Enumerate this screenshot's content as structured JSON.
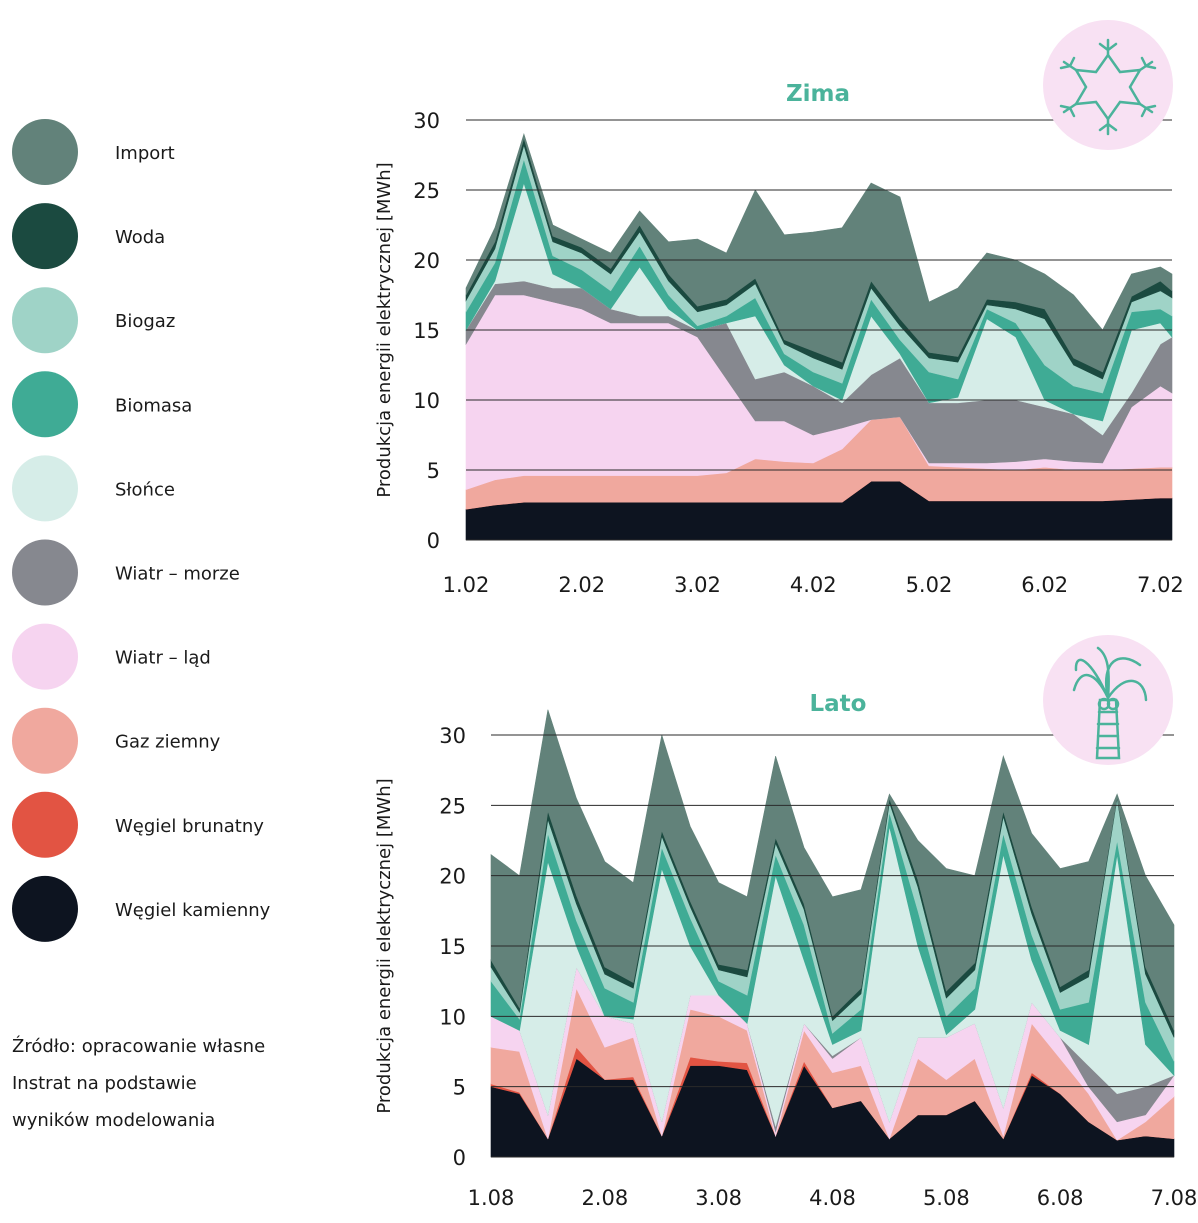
{
  "legend_source": [
    "Źródło: opracowanie własne",
    "Instrat na podstawie",
    "wyników modelowania"
  ],
  "chart_data": [
    {
      "type": "stacked_area",
      "title": "Zima",
      "ylabel": "Produkcja energii elektrycznej [MWh]",
      "x": [
        0,
        0.25,
        0.5,
        0.75,
        1,
        1.25,
        1.5,
        1.75,
        2,
        2.25,
        2.5,
        2.75,
        3,
        3.25,
        3.5,
        3.75,
        4,
        4.25,
        4.5,
        4.75,
        5,
        5.25,
        5.5,
        5.75,
        6,
        6.1
      ],
      "xlim": [
        0,
        6.1
      ],
      "xticks": [
        {
          "value": 0,
          "label": "1.02"
        },
        {
          "value": 1,
          "label": "2.02"
        },
        {
          "value": 2,
          "label": "3.02"
        },
        {
          "value": 3,
          "label": "4.02"
        },
        {
          "value": 4,
          "label": "5.02"
        },
        {
          "value": 5,
          "label": "6.02"
        },
        {
          "value": 6,
          "label": "7.02"
        }
      ],
      "ylim": [
        0,
        30
      ],
      "yticks": [
        0,
        5,
        10,
        15,
        20,
        25,
        30
      ],
      "grid": true,
      "series": [
        {
          "name": "Import",
          "color": "#62827a",
          "values": [
            0.5,
            1.0,
            0.3,
            0.8,
            0.6,
            1.1,
            1.0,
            2.3,
            4.8,
            3.3,
            6.3,
            7.5,
            8.5,
            9.6,
            7.0,
            8.7,
            3.6,
            4.9,
            3.3,
            3.0,
            2.5,
            4.5,
            3.0,
            1.6,
            1.0,
            1.2
          ]
        },
        {
          "name": "Woda",
          "color": "#1b4a40",
          "values": [
            0.4,
            0.5,
            0.5,
            0.4,
            0.4,
            0.4,
            0.5,
            0.5,
            0.4,
            0.4,
            0.4,
            0.3,
            0.5,
            0.5,
            0.5,
            0.5,
            0.4,
            0.4,
            0.4,
            0.5,
            0.7,
            0.5,
            0.5,
            0.4,
            0.7,
            0.5
          ]
        },
        {
          "name": "Biogaz",
          "color": "#9fd3c7",
          "values": [
            0.8,
            1.0,
            1.0,
            1.0,
            1.2,
            1.2,
            1.0,
            1.0,
            1.0,
            0.8,
            1.0,
            0.7,
            1.0,
            1.0,
            0.8,
            1.0,
            1.0,
            1.2,
            0.3,
            1.0,
            3.3,
            1.5,
            1.0,
            0.7,
            1.3,
            1.3
          ]
        },
        {
          "name": "Biomasa",
          "color": "#3fab95",
          "values": [
            1.3,
            1.3,
            1.7,
            1.3,
            1.3,
            1.3,
            1.5,
            1.0,
            0.3,
            0.5,
            1.3,
            0.8,
            1.0,
            1.2,
            1.2,
            1.0,
            2.2,
            1.3,
            0.7,
            1.0,
            2.5,
            2.0,
            2.0,
            1.3,
            1.0,
            1.5
          ]
        },
        {
          "name": "Słońce",
          "color": "#d6ede8",
          "values": [
            0,
            0.2,
            7.0,
            1.0,
            0,
            0,
            3.5,
            0.5,
            0,
            0,
            4.5,
            0.5,
            0,
            0.2,
            4.2,
            0.3,
            0,
            0.4,
            5.8,
            4.5,
            0.5,
            0,
            1.0,
            4.5,
            1.5,
            0
          ]
        },
        {
          "name": "Wiatr – morze",
          "color": "#86888f",
          "values": [
            1.0,
            0.8,
            1.0,
            1.0,
            1.5,
            1.0,
            0.5,
            0.5,
            0.5,
            4.0,
            3.0,
            3.5,
            3.5,
            1.8,
            3.2,
            4.2,
            4.3,
            4.3,
            4.5,
            4.4,
            3.7,
            3.4,
            2.0,
            1.0,
            3.0,
            4.0
          ]
        },
        {
          "name": "Wiatr – ląd",
          "color": "#f6d4f0",
          "values": [
            10.4,
            13.2,
            12.9,
            12.4,
            11.9,
            10.9,
            10.9,
            10.9,
            9.9,
            6.7,
            2.7,
            2.9,
            2.0,
            1.5,
            0,
            0,
            0.2,
            0.3,
            0.4,
            0.6,
            0.6,
            0.6,
            0.5,
            4.4,
            5.8,
            5.3
          ]
        },
        {
          "name": "Gaz ziemny",
          "color": "#f0a89e",
          "values": [
            1.4,
            1.8,
            1.9,
            1.9,
            1.9,
            1.9,
            1.9,
            1.9,
            1.9,
            2.1,
            3.1,
            2.9,
            2.8,
            3.8,
            4.4,
            4.6,
            2.5,
            2.4,
            2.3,
            2.2,
            2.4,
            2.2,
            2.2,
            2.2,
            2.2,
            2.2
          ]
        },
        {
          "name": "Węgiel brunatny",
          "color": "#e25443",
          "values": [
            0,
            0,
            0,
            0,
            0,
            0,
            0,
            0,
            0,
            0,
            0,
            0,
            0,
            0,
            0,
            0,
            0,
            0,
            0,
            0,
            0,
            0,
            0,
            0,
            0,
            0
          ]
        },
        {
          "name": "Węgiel kamienny",
          "color": "#0d1420",
          "values": [
            2.2,
            2.5,
            2.7,
            2.7,
            2.7,
            2.7,
            2.7,
            2.7,
            2.7,
            2.7,
            2.7,
            2.7,
            2.7,
            2.7,
            4.2,
            4.2,
            2.8,
            2.8,
            2.8,
            2.8,
            2.8,
            2.8,
            2.8,
            2.9,
            3.0,
            3.0
          ]
        }
      ]
    },
    {
      "type": "stacked_area",
      "title": "Lato",
      "ylabel": "Produkcja energii elektrycznej [MWh]",
      "x": [
        0,
        0.25,
        0.5,
        0.75,
        1,
        1.25,
        1.5,
        1.75,
        2,
        2.25,
        2.5,
        2.75,
        3,
        3.25,
        3.5,
        3.75,
        4,
        4.25,
        4.5,
        4.75,
        5,
        5.25,
        5.5,
        5.75,
        6
      ],
      "xlim": [
        0,
        6
      ],
      "xticks": [
        {
          "value": 0,
          "label": "1.08"
        },
        {
          "value": 1,
          "label": "2.08"
        },
        {
          "value": 2,
          "label": "3.08"
        },
        {
          "value": 3,
          "label": "4.08"
        },
        {
          "value": 4,
          "label": "5.08"
        },
        {
          "value": 5,
          "label": "6.08"
        },
        {
          "value": 6,
          "label": "7.08"
        }
      ],
      "ylim": [
        0,
        30
      ],
      "yticks": [
        0,
        5,
        10,
        15,
        20,
        25,
        30
      ],
      "grid": true,
      "series": [
        {
          "name": "Import",
          "color": "#62827a",
          "values": [
            7.5,
            9.4,
            7.2,
            6.9,
            7.5,
            7.1,
            6.8,
            5.3,
            5.8,
            5.2,
            5.8,
            4.0,
            8.5,
            7.0,
            0.3,
            2.8,
            8.7,
            6.2,
            3.9,
            5.2,
            8.4,
            7.7,
            0.2,
            6.5,
            7.5
          ]
        },
        {
          "name": "Woda",
          "color": "#1b4a40",
          "values": [
            0.5,
            0.3,
            0.6,
            0.6,
            0.5,
            0.4,
            0.4,
            0.4,
            0.4,
            0.5,
            0.4,
            0.4,
            0.3,
            0.4,
            0.3,
            0.5,
            0.5,
            0.5,
            0.4,
            0.5,
            0.4,
            0.5,
            0.1,
            0.5,
            0.5
          ]
        },
        {
          "name": "Biogaz",
          "color": "#9fd3c7",
          "values": [
            1.0,
            0.5,
            1.0,
            1.2,
            1.0,
            1.0,
            0.8,
            0.8,
            0.8,
            1.3,
            0.8,
            1.1,
            0.9,
            1.1,
            0.7,
            1.7,
            1.3,
            1.3,
            1.2,
            1.5,
            1.2,
            1.8,
            3.0,
            2.0,
            1.7
          ]
        },
        {
          "name": "Biomasa",
          "color": "#3fab95",
          "values": [
            2.5,
            0.8,
            2.0,
            1.8,
            2.0,
            1.2,
            1.5,
            2.0,
            1.0,
            2.0,
            1.5,
            2.5,
            0.8,
            1.5,
            1.0,
            2.5,
            1.3,
            1.5,
            1.5,
            1.8,
            1.5,
            3.0,
            1.0,
            3.0,
            1.0
          ]
        },
        {
          "name": "Słońce",
          "color": "#d6ede8",
          "values": [
            0,
            0,
            18.0,
            1.5,
            0,
            0.3,
            18.0,
            3.5,
            0,
            0,
            17.8,
            4.5,
            0.8,
            0.5,
            21.0,
            6.5,
            0.2,
            1.0,
            18.0,
            3.0,
            0.5,
            1.5,
            17.0,
            3.0,
            0
          ]
        },
        {
          "name": "Wiatr – morze",
          "color": "#86888f",
          "values": [
            0,
            0,
            0,
            0,
            0,
            0,
            0,
            0,
            0,
            0,
            0.4,
            0,
            0.2,
            0,
            0,
            0,
            0,
            0,
            0,
            0,
            0,
            1.5,
            2.0,
            2.0,
            0
          ]
        },
        {
          "name": "Wiatr – ląd",
          "color": "#f6d4f0",
          "values": [
            2.2,
            1.5,
            1.7,
            1.5,
            2.2,
            1.0,
            1.0,
            1.0,
            1.5,
            0.5,
            0.3,
            0.5,
            1.0,
            2.0,
            1.2,
            1.5,
            3.0,
            2.5,
            2.0,
            1.5,
            1.5,
            0.5,
            1.3,
            0.5,
            1.5
          ]
        },
        {
          "name": "Gaz ziemny",
          "color": "#f0a89e",
          "values": [
            2.6,
            2.9,
            0,
            4.2,
            2.3,
            2.8,
            0,
            3.4,
            3.2,
            2.3,
            0,
            2.2,
            2.5,
            2.5,
            0,
            4.0,
            2.5,
            3.0,
            0.2,
            3.5,
            2.5,
            2.0,
            0,
            1.0,
            3.0
          ]
        },
        {
          "name": "Węgiel brunatny",
          "color": "#e25443",
          "values": [
            0.2,
            0.1,
            0,
            0.8,
            0,
            0.2,
            0,
            0.6,
            0.3,
            0.5,
            0,
            0.3,
            0,
            0,
            0,
            0,
            0,
            0,
            0,
            0.2,
            0,
            0,
            0,
            0,
            0
          ]
        },
        {
          "name": "Węgiel kamienny",
          "color": "#0d1420",
          "values": [
            5.0,
            4.5,
            1.3,
            7.0,
            5.5,
            5.5,
            1.5,
            6.5,
            6.5,
            6.2,
            1.5,
            6.5,
            3.5,
            4.0,
            1.3,
            3.0,
            3.0,
            4.0,
            1.3,
            5.8,
            4.5,
            2.5,
            1.2,
            1.5,
            1.3
          ]
        }
      ]
    }
  ]
}
